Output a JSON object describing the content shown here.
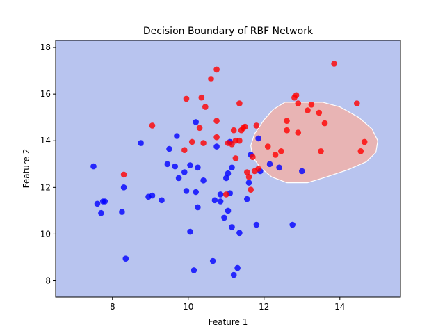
{
  "chart_data": {
    "type": "scatter",
    "title": "Decision Boundary of RBF Network",
    "xlabel": "Feature 1",
    "ylabel": "Feature 2",
    "xlim": [
      6.5,
      15.6
    ],
    "ylim": [
      7.3,
      18.3
    ],
    "xticks": [
      8,
      10,
      12,
      14
    ],
    "yticks": [
      8,
      10,
      12,
      14,
      16,
      18
    ],
    "grid": false,
    "background_region_color": "#b8c4ef",
    "boundary_region_color": "#e8b4b4",
    "boundary_edge_color": "#ffffff",
    "boundary_region": [
      [
        12.55,
        15.65
      ],
      [
        13.55,
        15.65
      ],
      [
        14.0,
        15.45
      ],
      [
        14.5,
        15.0
      ],
      [
        14.85,
        14.5
      ],
      [
        15.0,
        14.0
      ],
      [
        14.95,
        13.5
      ],
      [
        14.7,
        13.1
      ],
      [
        14.2,
        12.75
      ],
      [
        13.65,
        12.45
      ],
      [
        13.15,
        12.2
      ],
      [
        12.6,
        12.2
      ],
      [
        12.2,
        12.45
      ],
      [
        11.9,
        12.85
      ],
      [
        11.7,
        13.3
      ],
      [
        11.65,
        13.8
      ],
      [
        11.75,
        14.3
      ],
      [
        12.0,
        14.9
      ],
      [
        12.25,
        15.35
      ]
    ],
    "series": [
      {
        "color": "#0000ff",
        "points": [
          [
            7.5,
            12.9
          ],
          [
            7.6,
            11.3
          ],
          [
            7.7,
            10.9
          ],
          [
            7.75,
            11.4
          ],
          [
            7.8,
            11.4
          ],
          [
            8.25,
            10.95
          ],
          [
            8.3,
            12.0
          ],
          [
            8.35,
            8.95
          ],
          [
            8.75,
            13.9
          ],
          [
            8.95,
            11.6
          ],
          [
            9.05,
            11.65
          ],
          [
            9.3,
            11.45
          ],
          [
            9.45,
            13.0
          ],
          [
            9.5,
            13.65
          ],
          [
            9.65,
            12.9
          ],
          [
            9.7,
            14.2
          ],
          [
            9.75,
            12.4
          ],
          [
            9.9,
            12.65
          ],
          [
            9.95,
            11.85
          ],
          [
            10.05,
            12.95
          ],
          [
            10.05,
            10.1
          ],
          [
            10.15,
            8.45
          ],
          [
            10.2,
            11.8
          ],
          [
            10.2,
            14.8
          ],
          [
            10.25,
            11.15
          ],
          [
            10.25,
            12.85
          ],
          [
            10.4,
            12.3
          ],
          [
            10.65,
            8.85
          ],
          [
            10.7,
            11.45
          ],
          [
            10.75,
            13.75
          ],
          [
            10.85,
            11.7
          ],
          [
            10.85,
            11.4
          ],
          [
            10.95,
            10.7
          ],
          [
            11.0,
            12.4
          ],
          [
            11.05,
            12.6
          ],
          [
            11.05,
            11.0
          ],
          [
            11.1,
            13.95
          ],
          [
            11.1,
            11.75
          ],
          [
            11.15,
            12.85
          ],
          [
            11.15,
            10.3
          ],
          [
            11.2,
            8.25
          ],
          [
            11.3,
            8.55
          ],
          [
            11.35,
            10.05
          ],
          [
            11.55,
            11.5
          ],
          [
            11.6,
            12.2
          ],
          [
            11.65,
            13.4
          ],
          [
            11.8,
            10.4
          ],
          [
            11.85,
            14.1
          ],
          [
            11.9,
            12.7
          ],
          [
            12.15,
            13.0
          ],
          [
            12.4,
            12.85
          ],
          [
            12.75,
            10.4
          ],
          [
            13.0,
            12.7
          ]
        ]
      },
      {
        "color": "#ff0000",
        "points": [
          [
            8.3,
            12.55
          ],
          [
            9.05,
            14.65
          ],
          [
            9.9,
            13.6
          ],
          [
            9.95,
            15.8
          ],
          [
            10.1,
            13.95
          ],
          [
            10.3,
            14.55
          ],
          [
            10.35,
            15.85
          ],
          [
            10.4,
            13.9
          ],
          [
            10.45,
            15.45
          ],
          [
            10.6,
            16.65
          ],
          [
            10.75,
            17.05
          ],
          [
            10.75,
            14.85
          ],
          [
            10.75,
            14.15
          ],
          [
            11.0,
            11.7
          ],
          [
            11.05,
            13.9
          ],
          [
            11.15,
            13.85
          ],
          [
            11.2,
            14.45
          ],
          [
            11.25,
            14.0
          ],
          [
            11.25,
            13.25
          ],
          [
            11.35,
            15.6
          ],
          [
            11.35,
            14.0
          ],
          [
            11.4,
            14.45
          ],
          [
            11.45,
            14.55
          ],
          [
            11.5,
            14.6
          ],
          [
            11.55,
            12.65
          ],
          [
            11.6,
            12.45
          ],
          [
            11.65,
            11.9
          ],
          [
            11.7,
            13.3
          ],
          [
            11.75,
            12.7
          ],
          [
            11.8,
            14.65
          ],
          [
            11.85,
            12.8
          ],
          [
            12.1,
            13.75
          ],
          [
            12.3,
            13.4
          ],
          [
            12.45,
            13.55
          ],
          [
            12.6,
            14.45
          ],
          [
            12.6,
            14.85
          ],
          [
            12.8,
            15.85
          ],
          [
            12.85,
            15.95
          ],
          [
            12.9,
            15.6
          ],
          [
            12.9,
            14.35
          ],
          [
            13.15,
            15.3
          ],
          [
            13.25,
            15.55
          ],
          [
            13.45,
            15.2
          ],
          [
            13.5,
            13.55
          ],
          [
            13.6,
            14.75
          ],
          [
            13.85,
            17.3
          ],
          [
            14.45,
            15.6
          ],
          [
            14.55,
            13.55
          ],
          [
            14.65,
            13.95
          ]
        ]
      }
    ]
  }
}
